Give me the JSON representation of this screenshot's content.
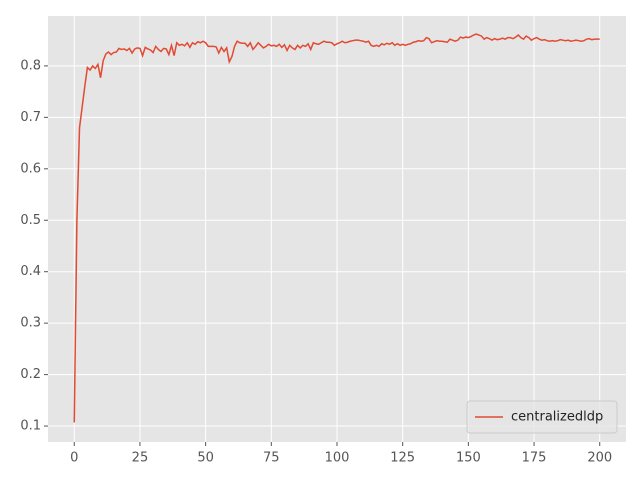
{
  "chart_data": {
    "type": "line",
    "x": [
      0,
      1,
      2,
      3,
      4,
      5,
      6,
      7,
      8,
      9,
      10,
      11,
      12,
      13,
      14,
      15,
      16,
      17,
      18,
      19,
      20,
      21,
      22,
      23,
      24,
      25,
      26,
      27,
      28,
      29,
      30,
      31,
      32,
      33,
      34,
      35,
      36,
      37,
      38,
      39,
      40,
      41,
      42,
      43,
      44,
      45,
      46,
      47,
      48,
      49,
      50,
      51,
      52,
      53,
      54,
      55,
      56,
      57,
      58,
      59,
      60,
      61,
      62,
      63,
      64,
      65,
      66,
      67,
      68,
      69,
      70,
      71,
      72,
      73,
      74,
      75,
      76,
      77,
      78,
      79,
      80,
      81,
      82,
      83,
      84,
      85,
      86,
      87,
      88,
      89,
      90,
      91,
      92,
      93,
      94,
      95,
      96,
      97,
      98,
      99,
      100,
      101,
      102,
      103,
      104,
      105,
      106,
      107,
      108,
      109,
      110,
      111,
      112,
      113,
      114,
      115,
      116,
      117,
      118,
      119,
      120,
      121,
      122,
      123,
      124,
      125,
      126,
      127,
      128,
      129,
      130,
      131,
      132,
      133,
      134,
      135,
      136,
      137,
      138,
      139,
      140,
      141,
      142,
      143,
      144,
      145,
      146,
      147,
      148,
      149,
      150,
      151,
      152,
      153,
      154,
      155,
      156,
      157,
      158,
      159,
      160,
      161,
      162,
      163,
      164,
      165,
      166,
      167,
      168,
      169,
      170,
      171,
      172,
      173,
      174,
      175,
      176,
      177,
      178,
      179,
      180,
      181,
      182,
      183,
      184,
      185,
      186,
      187,
      188,
      189,
      190,
      191,
      192,
      193,
      194,
      195,
      196,
      197,
      198,
      199,
      200
    ],
    "series": [
      {
        "name": "centralizedldp",
        "color": "#e24a33",
        "values": [
          0.107,
          0.5,
          0.68,
          0.72,
          0.76,
          0.797,
          0.792,
          0.8,
          0.795,
          0.803,
          0.777,
          0.81,
          0.823,
          0.827,
          0.822,
          0.826,
          0.827,
          0.834,
          0.832,
          0.833,
          0.83,
          0.834,
          0.825,
          0.833,
          0.835,
          0.834,
          0.82,
          0.836,
          0.833,
          0.831,
          0.826,
          0.838,
          0.832,
          0.828,
          0.834,
          0.833,
          0.822,
          0.84,
          0.82,
          0.845,
          0.84,
          0.842,
          0.839,
          0.845,
          0.836,
          0.845,
          0.842,
          0.847,
          0.845,
          0.848,
          0.845,
          0.838,
          0.838,
          0.838,
          0.837,
          0.825,
          0.836,
          0.828,
          0.835,
          0.808,
          0.818,
          0.838,
          0.848,
          0.845,
          0.844,
          0.844,
          0.838,
          0.845,
          0.832,
          0.838,
          0.845,
          0.84,
          0.835,
          0.838,
          0.842,
          0.839,
          0.84,
          0.838,
          0.842,
          0.836,
          0.841,
          0.83,
          0.84,
          0.835,
          0.832,
          0.84,
          0.835,
          0.84,
          0.838,
          0.843,
          0.832,
          0.845,
          0.843,
          0.842,
          0.845,
          0.848,
          0.846,
          0.846,
          0.845,
          0.84,
          0.843,
          0.845,
          0.848,
          0.845,
          0.846,
          0.848,
          0.849,
          0.85,
          0.85,
          0.849,
          0.848,
          0.846,
          0.848,
          0.84,
          0.838,
          0.84,
          0.838,
          0.843,
          0.841,
          0.844,
          0.842,
          0.845,
          0.84,
          0.843,
          0.84,
          0.842,
          0.84,
          0.842,
          0.843,
          0.846,
          0.847,
          0.849,
          0.848,
          0.849,
          0.855,
          0.853,
          0.845,
          0.847,
          0.849,
          0.848,
          0.848,
          0.847,
          0.846,
          0.852,
          0.85,
          0.848,
          0.85,
          0.856,
          0.854,
          0.856,
          0.855,
          0.857,
          0.86,
          0.862,
          0.86,
          0.858,
          0.852,
          0.855,
          0.853,
          0.85,
          0.853,
          0.851,
          0.852,
          0.854,
          0.852,
          0.855,
          0.855,
          0.853,
          0.856,
          0.86,
          0.855,
          0.852,
          0.858,
          0.855,
          0.85,
          0.853,
          0.855,
          0.852,
          0.85,
          0.851,
          0.849,
          0.848,
          0.849,
          0.848,
          0.849,
          0.851,
          0.85,
          0.849,
          0.85,
          0.848,
          0.849,
          0.85,
          0.849,
          0.848,
          0.849,
          0.852,
          0.853,
          0.851,
          0.852,
          0.852,
          0.852
        ]
      }
    ],
    "xlim": [
      -10,
      210
    ],
    "xticks": [
      0,
      25,
      50,
      75,
      100,
      125,
      150,
      175,
      200
    ],
    "ylim": [
      0.069,
      0.897
    ],
    "yticks": [
      0.1,
      0.2,
      0.3,
      0.4,
      0.5,
      0.6,
      0.7,
      0.8
    ],
    "grid": true,
    "legend": "lower right"
  }
}
